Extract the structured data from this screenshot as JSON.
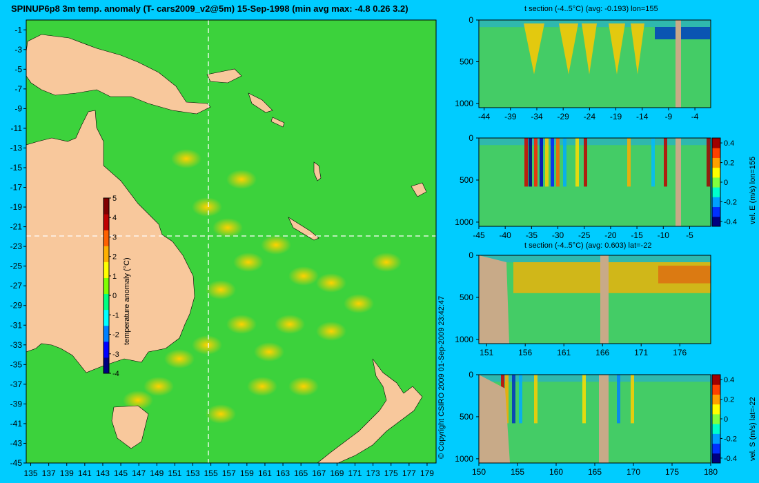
{
  "main_title": "SPINUP6p8 3m temp. anomaly (T- cars2009_v2@5m) 15-Sep-1998 (min avg max: -4.8 0.26 3.2)",
  "copyright": "© Copyright CSIRO 2009   01-Sep-2009 23:42:47",
  "colors": {
    "background": "#00ccff",
    "land": "#f8c89c",
    "section_land": "#c8aa88"
  },
  "chart_data": [
    {
      "id": "map",
      "type": "heatmap",
      "title": "SPINUP6p8 3m temp. anomaly (T- cars2009_v2@5m) 15-Sep-1998 (min avg max: -4.8 0.26 3.2)",
      "x_ticks": [
        "135",
        "137",
        "139",
        "141",
        "143",
        "145",
        "147",
        "149",
        "151",
        "153",
        "155",
        "157",
        "159",
        "161",
        "163",
        "165",
        "167",
        "169",
        "171",
        "173",
        "175",
        "177",
        "179"
      ],
      "y_ticks": [
        "-1",
        "-3",
        "-5",
        "-7",
        "-9",
        "-11",
        "-13",
        "-15",
        "-17",
        "-19",
        "-21",
        "-23",
        "-25",
        "-27",
        "-29",
        "-31",
        "-33",
        "-35",
        "-37",
        "-39",
        "-41",
        "-43",
        "-45"
      ],
      "xlim": [
        134.5,
        180
      ],
      "ylim": [
        -45,
        0
      ],
      "section_lon": 155,
      "section_lat": -22,
      "colorbar": {
        "label": "temperature anomaly (°C)",
        "ticks": [
          "5",
          "4",
          "3",
          "2",
          "1",
          "0",
          "-1",
          "-2",
          "-3",
          "-4"
        ],
        "range": [
          -4,
          5
        ]
      }
    },
    {
      "id": "t-section-lon",
      "type": "heatmap",
      "title": "t section (-4..5°C) (avg: -0.193) lon=155",
      "x_ticks": [
        "-44",
        "-39",
        "-34",
        "-29",
        "-24",
        "-19",
        "-14",
        "-9",
        "-4"
      ],
      "y_ticks": [
        "0",
        "500",
        "1000"
      ],
      "xlim": [
        -45,
        -1
      ],
      "ylim": [
        1050,
        0
      ]
    },
    {
      "id": "vel-e-section",
      "type": "heatmap",
      "title": "",
      "x_ticks": [
        "-45",
        "-40",
        "-35",
        "-30",
        "-25",
        "-20",
        "-15",
        "-10",
        "-5"
      ],
      "y_ticks": [
        "0",
        "500",
        "1000"
      ],
      "xlim": [
        -45,
        -1
      ],
      "ylim": [
        1050,
        0
      ],
      "colorbar": {
        "label": "vel. E (m/s) lon=155",
        "ticks": [
          "0.4",
          "0.2",
          "0",
          "-0.2",
          "-0.4"
        ],
        "range": [
          -0.45,
          0.45
        ]
      }
    },
    {
      "id": "t-section-lat",
      "type": "heatmap",
      "title": "t section (-4..5°C) (avg: 0.603) lat=-22",
      "x_ticks": [
        "151",
        "156",
        "161",
        "166",
        "171",
        "176"
      ],
      "y_ticks": [
        "0",
        "500",
        "1000"
      ],
      "xlim": [
        150,
        180
      ],
      "ylim": [
        1050,
        0
      ]
    },
    {
      "id": "vel-s-section",
      "type": "heatmap",
      "title": "",
      "x_ticks": [
        "150",
        "155",
        "160",
        "165",
        "170",
        "175",
        "180"
      ],
      "y_ticks": [
        "0",
        "500",
        "1000"
      ],
      "xlim": [
        150,
        180
      ],
      "ylim": [
        1050,
        0
      ],
      "colorbar": {
        "label": "vel. S (m/s) lat=-22",
        "ticks": [
          "0.4",
          "0.2",
          "0",
          "-0.2",
          "-0.4"
        ],
        "range": [
          -0.45,
          0.45
        ]
      }
    }
  ]
}
